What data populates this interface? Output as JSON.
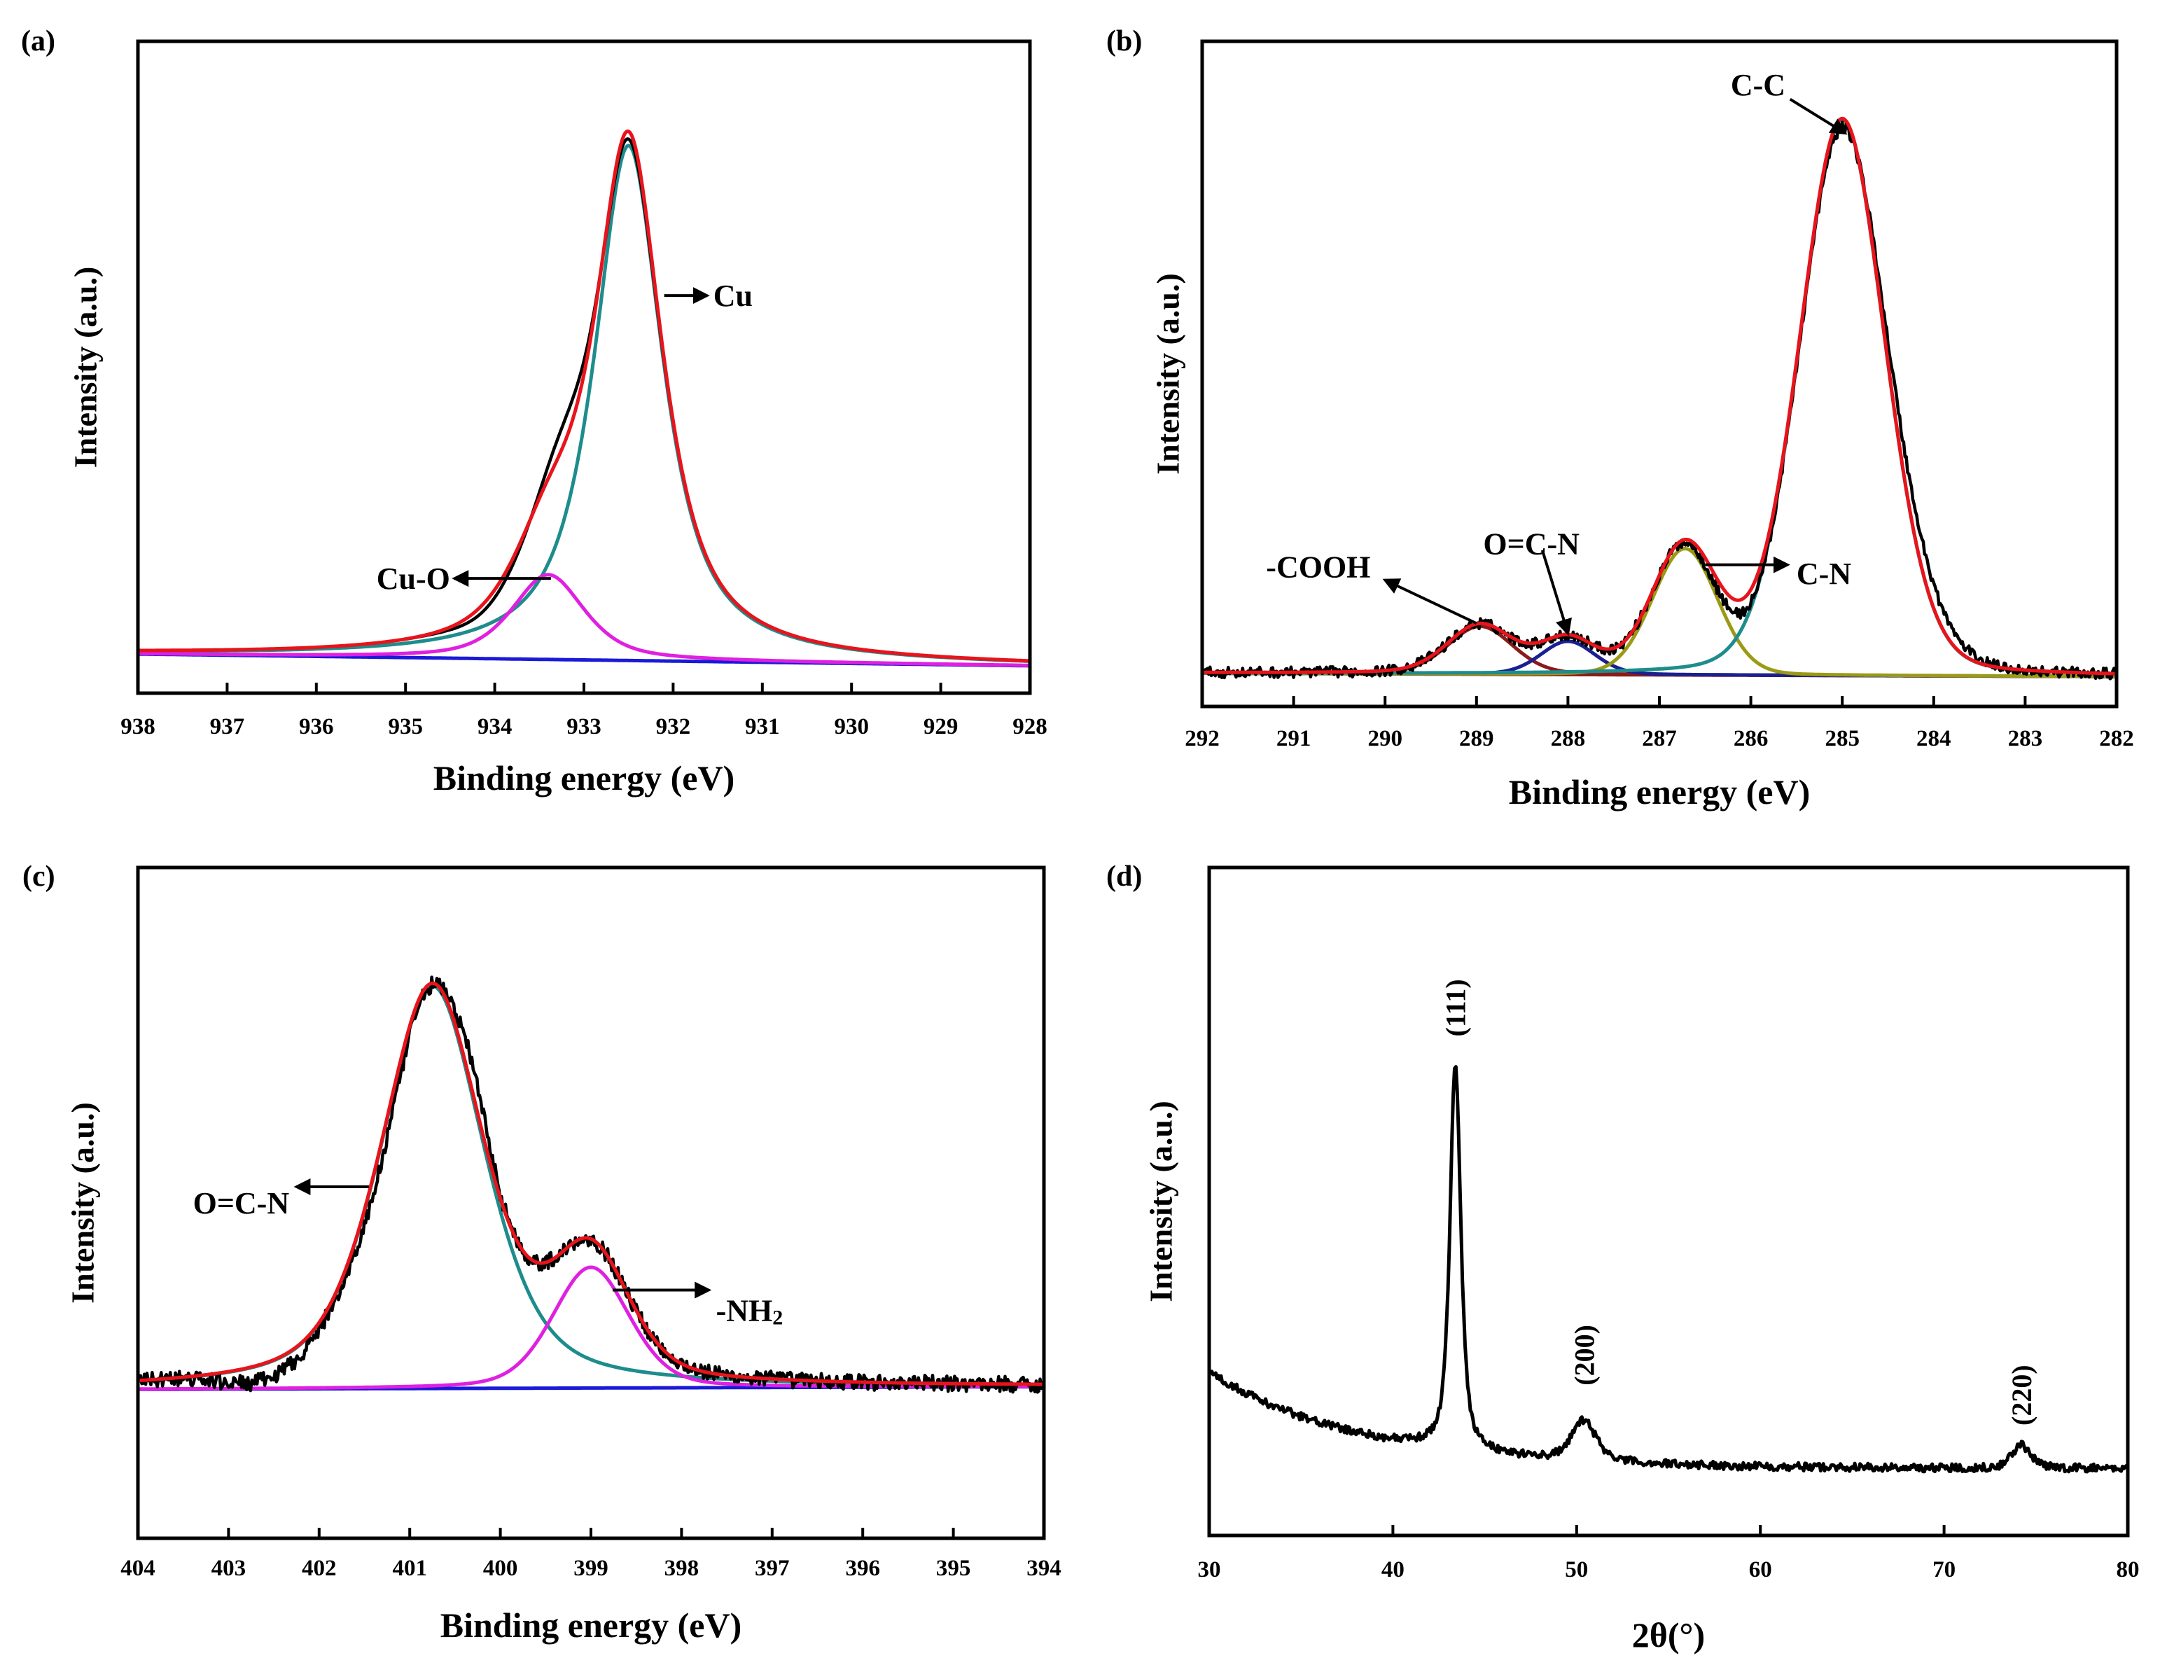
{
  "chart_data": [
    {
      "panel_label": "(a)",
      "type": "line",
      "title": "",
      "xlabel": "Binding energy (eV)",
      "ylabel": "Intensity (a.u.)",
      "xlim": [
        938,
        928
      ],
      "ylim": [
        0,
        1
      ],
      "xticks": [
        "938",
        "937",
        "936",
        "935",
        "934",
        "933",
        "932",
        "931",
        "930",
        "929",
        "928"
      ],
      "grid": false,
      "background": {
        "name": "background",
        "color": "#1a1ad8",
        "x": [
          938,
          928
        ],
        "y": [
          0.06,
          0.042
        ]
      },
      "components": [
        {
          "name": "Cu",
          "color": "#1e8c8c",
          "center": 932.5,
          "height": 0.79,
          "hwhm": 0.46,
          "lorentz_fraction": 0.85
        },
        {
          "name": "Cu-O",
          "color": "#e020e0",
          "center": 933.4,
          "height": 0.13,
          "hwhm": 0.48,
          "lorentz_fraction": 0.6
        }
      ],
      "fit": {
        "name": "fitted envelope",
        "color": "#e8141c"
      },
      "experimental": {
        "name": "experimental",
        "color": "#000000",
        "noise": 0.0,
        "deviation_peaks": [
          {
            "center": 933.2,
            "height": 0.035,
            "hwhm": 0.25,
            "lorentz_fraction": 0
          },
          {
            "center": 934.0,
            "height": -0.012,
            "hwhm": 0.4,
            "lorentz_fraction": 0
          },
          {
            "center": 932.5,
            "height": -0.012,
            "hwhm": 0.3,
            "lorentz_fraction": 0
          }
        ]
      },
      "annotations": [
        {
          "text": "Cu",
          "text_x": 931.55,
          "text_y": 0.61,
          "anchor": "start",
          "arrow_from": [
            932.1,
            0.61
          ],
          "arrow_to": [
            931.62,
            0.61
          ]
        },
        {
          "text": "Cu-O",
          "text_x": 934.5,
          "text_y": 0.176,
          "anchor": "end",
          "arrow_from": [
            933.37,
            0.176
          ],
          "arrow_to": [
            934.45,
            0.176
          ]
        }
      ]
    },
    {
      "panel_label": "(b)",
      "type": "line",
      "title": "",
      "xlabel": "Binding energy (eV)",
      "ylabel": "Intensity (a.u.)",
      "xlim": [
        292,
        282
      ],
      "ylim": [
        0,
        1
      ],
      "xticks": [
        "292",
        "291",
        "290",
        "289",
        "288",
        "287",
        "286",
        "285",
        "284",
        "283",
        "282"
      ],
      "grid": false,
      "background": {
        "name": "background",
        "color": "#8b1a1a",
        "x": [
          292,
          282
        ],
        "y": [
          0.05,
          0.045
        ]
      },
      "components": [
        {
          "name": "-COOH",
          "color": "#8b1a1a",
          "center": 288.96,
          "height": 0.072,
          "hwhm": 0.42,
          "lorentz_fraction": 0.2
        },
        {
          "name": "O=C-N",
          "color": "#1a2090",
          "center": 288.0,
          "height": 0.05,
          "hwhm": 0.35,
          "lorentz_fraction": 0.2
        },
        {
          "name": "C-N",
          "color": "#9a9a14",
          "center": 286.72,
          "height": 0.19,
          "hwhm": 0.42,
          "lorentz_fraction": 0.1
        },
        {
          "name": "C-C",
          "color": "#1e8c8c",
          "center": 285.0,
          "height": 0.836,
          "hwhm": 0.55,
          "lorentz_fraction": 0.15
        }
      ],
      "fit": {
        "name": "fitted envelope",
        "color": "#e8141c"
      },
      "experimental": {
        "name": "experimental",
        "color": "#000000",
        "noise": 0.008,
        "deviation_peaks": [
          {
            "center": 284.25,
            "height": 0.045,
            "hwhm": 0.45,
            "lorentz_fraction": 0
          },
          {
            "center": 285.0,
            "height": -0.02,
            "hwhm": 0.3,
            "lorentz_fraction": 0
          },
          {
            "center": 286.1,
            "height": -0.02,
            "hwhm": 0.4,
            "lorentz_fraction": 0
          }
        ]
      },
      "annotations": [
        {
          "text": "C-C",
          "text_x": 286.22,
          "text_y": 0.935,
          "anchor": "start",
          "arrow_from": [
            285.57,
            0.913
          ],
          "arrow_to": [
            284.97,
            0.862
          ]
        },
        {
          "text": "C-N",
          "text_x": 285.5,
          "text_y": 0.2,
          "anchor": "start",
          "arrow_from": [
            286.5,
            0.213
          ],
          "arrow_to": [
            285.6,
            0.213
          ]
        },
        {
          "text": "O=C-N",
          "text_x": 288.4,
          "text_y": 0.245,
          "anchor": "middle",
          "arrow_from": [
            288.28,
            0.235
          ],
          "arrow_to": [
            288.0,
            0.11
          ]
        },
        {
          "text": "-COOH",
          "text_x": 290.73,
          "text_y": 0.21,
          "anchor": "middle",
          "arrow_from": [
            289.0,
            0.125
          ],
          "arrow_to": [
            290.0,
            0.19
          ]
        }
      ]
    },
    {
      "panel_label": "(c)",
      "type": "line",
      "title": "",
      "xlabel": "Binding energy (eV)",
      "ylabel": "Intensity (a.u.)",
      "xlim": [
        404,
        394
      ],
      "ylim": [
        0,
        1
      ],
      "xticks": [
        "404",
        "403",
        "402",
        "401",
        "400",
        "399",
        "398",
        "397",
        "396",
        "395",
        "394"
      ],
      "grid": false,
      "background": {
        "name": "background",
        "color": "#1a1ad8",
        "x": [
          404,
          394
        ],
        "y": [
          0.222,
          0.226
        ]
      },
      "components": [
        {
          "name": "O=C-N",
          "color": "#1e8c8c",
          "center": 400.75,
          "height": 0.6,
          "hwhm": 0.68,
          "lorentz_fraction": 0.5
        },
        {
          "name": "-NH2",
          "color": "#e020e0",
          "center": 399.0,
          "height": 0.18,
          "hwhm": 0.5,
          "lorentz_fraction": 0.3
        }
      ],
      "fit": {
        "name": "fitted envelope",
        "color": "#e8141c"
      },
      "experimental": {
        "name": "experimental",
        "color": "#000000",
        "noise": 0.012,
        "deviation_peaks": [
          {
            "center": 400.3,
            "height": 0.04,
            "hwhm": 0.2,
            "lorentz_fraction": 0
          },
          {
            "center": 401.3,
            "height": -0.03,
            "hwhm": 0.3,
            "lorentz_fraction": 0
          },
          {
            "center": 402.6,
            "height": -0.025,
            "hwhm": 0.5,
            "lorentz_fraction": 0
          }
        ]
      },
      "annotations": [
        {
          "text": "O=C-N",
          "text_x": 402.33,
          "text_y": 0.5,
          "anchor": "end",
          "arrow_from": [
            401.45,
            0.524
          ],
          "arrow_to": [
            402.25,
            0.524
          ]
        },
        {
          "text": "-NH",
          "subscript": "2",
          "text_x": 397.62,
          "text_y": 0.34,
          "anchor": "start",
          "arrow_from": [
            398.76,
            0.37
          ],
          "arrow_to": [
            397.7,
            0.37
          ]
        }
      ]
    },
    {
      "panel_label": "(d)",
      "type": "line",
      "title": "",
      "xlabel": "2θ(°)",
      "ylabel": "Intensity (a.u.)",
      "xlim": [
        30,
        80
      ],
      "ylim": [
        0,
        1
      ],
      "xticks": [
        "30",
        "40",
        "50",
        "60",
        "70",
        "80"
      ],
      "grid": false,
      "experimental": {
        "name": "XRD pattern",
        "color": "#000000",
        "noise": 0.006,
        "background": {
          "type": "exp",
          "offset": 0.1,
          "amplitude": 0.145,
          "x0": 30,
          "decay": 8
        },
        "peaks": [
          {
            "name": "(111)",
            "center": 43.4,
            "height": 0.58,
            "hwhm": 0.35,
            "lorentz_fraction": 0.7
          },
          {
            "name": "(200)",
            "center": 50.4,
            "height": 0.06,
            "hwhm": 0.8,
            "lorentz_fraction": 0.5
          },
          {
            "name": "(220)",
            "center": 74.2,
            "height": 0.035,
            "hwhm": 0.6,
            "lorentz_fraction": 0.5
          }
        ]
      },
      "annotations": [
        {
          "text": "(111)",
          "text_x": 43.4,
          "text_y": 0.79,
          "rotate": true
        },
        {
          "text": "(200)",
          "text_x": 50.4,
          "text_y": 0.27,
          "rotate": true
        },
        {
          "text": "(220)",
          "text_x": 74.2,
          "text_y": 0.21,
          "rotate": true
        }
      ]
    }
  ]
}
